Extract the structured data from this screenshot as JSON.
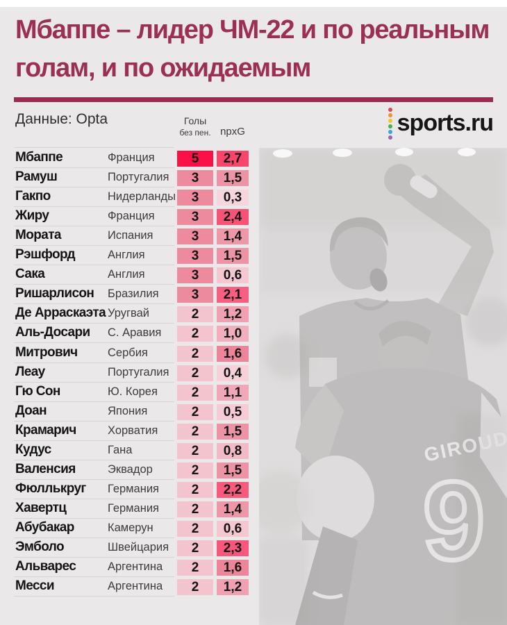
{
  "page": {
    "bg": "#eae8e8",
    "accent": "#982d51"
  },
  "header": {
    "title_line1": "Мбаппе – лидер ЧМ-22 и по реальным",
    "title_line2": "голам, и по ожидаемым",
    "source_label": "Данные: Opta"
  },
  "logo": {
    "text": "sports.ru",
    "dot_colors": [
      "#e94256",
      "#f49031",
      "#efca1f",
      "#47b052",
      "#31a9e0",
      "#a05fb5"
    ]
  },
  "chart_data": {
    "type": "table",
    "title": "Мбаппе – лидер ЧМ-22 и по реальным голам, и по ожидаемым",
    "source": "Opta",
    "columns": {
      "goals_header_line1": "Голы",
      "goals_header_line2": "без пен.",
      "npxg_header": "npxG"
    },
    "rows": [
      {
        "player": "Мбаппе",
        "country": "Франция",
        "goals": "5",
        "npxg": "2,7",
        "goals_color": "#fb1048",
        "npxg_color": "#f9446c"
      },
      {
        "player": "Рамуш",
        "country": "Португалия",
        "goals": "3",
        "npxg": "1,5",
        "goals_color": "#ee8a9e",
        "npxg_color": "#ed93a6"
      },
      {
        "player": "Гакпо",
        "country": "Нидерланды",
        "goals": "3",
        "npxg": "0,3",
        "goals_color": "#ee8a9e",
        "npxg_color": "#f6d5dd"
      },
      {
        "player": "Жиру",
        "country": "Франция",
        "goals": "3",
        "npxg": "2,4",
        "goals_color": "#ee8a9e",
        "npxg_color": "#f85377"
      },
      {
        "player": "Мората",
        "country": "Испания",
        "goals": "3",
        "npxg": "1,4",
        "goals_color": "#ee8a9e",
        "npxg_color": "#ee97a9"
      },
      {
        "player": "Рэшфорд",
        "country": "Англия",
        "goals": "3",
        "npxg": "1,5",
        "goals_color": "#ee8a9e",
        "npxg_color": "#ed93a6"
      },
      {
        "player": "Сака",
        "country": "Англия",
        "goals": "3",
        "npxg": "0,6",
        "goals_color": "#ee8a9e",
        "npxg_color": "#f4c7d1"
      },
      {
        "player": "Ришарлисон",
        "country": "Бразилия",
        "goals": "3",
        "npxg": "2,1",
        "goals_color": "#ee8a9e",
        "npxg_color": "#f75e81"
      },
      {
        "player": "Де Арраскаэта",
        "country": "Уругвай",
        "goals": "2",
        "npxg": "1,2",
        "goals_color": "#f3c3ce",
        "npxg_color": "#efa1b2"
      },
      {
        "player": "Аль-Досари",
        "country": "С. Аравия",
        "goals": "2",
        "npxg": "1,0",
        "goals_color": "#f3c3ce",
        "npxg_color": "#f1aebd"
      },
      {
        "player": "Митрович",
        "country": "Сербия",
        "goals": "2",
        "npxg": "1,6",
        "goals_color": "#f3c3ce",
        "npxg_color": "#ec8599"
      },
      {
        "player": "Леау",
        "country": "Португалия",
        "goals": "2",
        "npxg": "0,4",
        "goals_color": "#f3c3ce",
        "npxg_color": "#f6d1d9"
      },
      {
        "player": "Гю Сон",
        "country": "Ю. Корея",
        "goals": "2",
        "npxg": "1,1",
        "goals_color": "#f3c3ce",
        "npxg_color": "#f0a7b7"
      },
      {
        "player": "Доан",
        "country": "Япония",
        "goals": "2",
        "npxg": "0,5",
        "goals_color": "#f3c3ce",
        "npxg_color": "#f5ccd5"
      },
      {
        "player": "Крамарич",
        "country": "Хорватия",
        "goals": "2",
        "npxg": "1,5",
        "goals_color": "#f3c3ce",
        "npxg_color": "#ed93a6"
      },
      {
        "player": "Кудус",
        "country": "Гана",
        "goals": "2",
        "npxg": "0,8",
        "goals_color": "#f3c3ce",
        "npxg_color": "#f2bac7"
      },
      {
        "player": "Валенсия",
        "country": "Эквадор",
        "goals": "2",
        "npxg": "1,5",
        "goals_color": "#f3c3ce",
        "npxg_color": "#ed93a6"
      },
      {
        "player": "Фюллькруг",
        "country": "Германия",
        "goals": "2",
        "npxg": "2,2",
        "goals_color": "#f3c3ce",
        "npxg_color": "#f85a7d"
      },
      {
        "player": "Хавертц",
        "country": "Германия",
        "goals": "2",
        "npxg": "1,4",
        "goals_color": "#f3c3ce",
        "npxg_color": "#ee97a9"
      },
      {
        "player": "Абубакар",
        "country": "Камерун",
        "goals": "2",
        "npxg": "0,6",
        "goals_color": "#f3c3ce",
        "npxg_color": "#f4c7d1"
      },
      {
        "player": "Эмболо",
        "country": "Швейцария",
        "goals": "2",
        "npxg": "2,3",
        "goals_color": "#f3c3ce",
        "npxg_color": "#f8567a"
      },
      {
        "player": "Альварес",
        "country": "Аргентина",
        "goals": "2",
        "npxg": "1,6",
        "goals_color": "#f3c3ce",
        "npxg_color": "#ec8599"
      },
      {
        "player": "Месси",
        "country": "Аргентина",
        "goals": "2",
        "npxg": "1,2",
        "goals_color": "#f3c3ce",
        "npxg_color": "#efa1b2"
      }
    ]
  },
  "photo": {
    "jersey_name": "GIROUD",
    "jersey_number": "9"
  }
}
